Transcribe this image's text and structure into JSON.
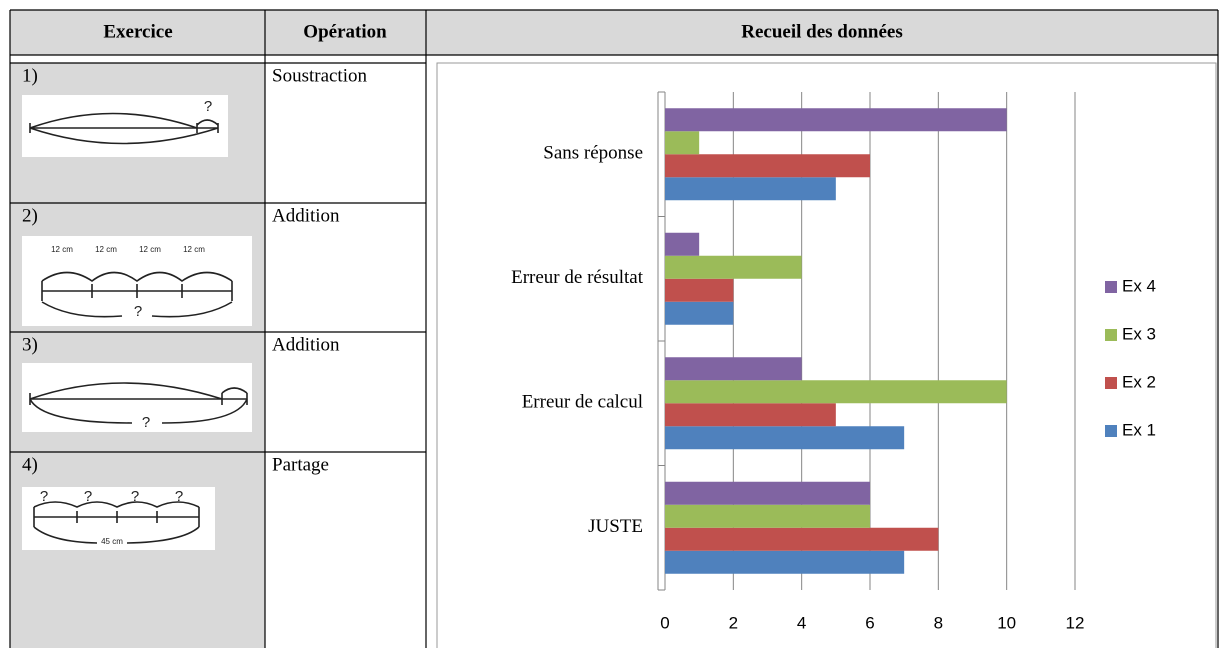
{
  "table": {
    "headers": [
      "Exercice",
      "Opération",
      "Recueil des données"
    ],
    "rows": [
      {
        "exercise": "1)",
        "operation": "Soustraction",
        "sketch_labels": [
          "?"
        ]
      },
      {
        "exercise": "2)",
        "operation": "Addition",
        "sketch_labels": [
          "12 cm",
          "12 cm",
          "12 cm",
          "12 cm",
          "?"
        ]
      },
      {
        "exercise": "3)",
        "operation": "Addition",
        "sketch_labels": [
          "?"
        ]
      },
      {
        "exercise": "4)",
        "operation": "Partage",
        "sketch_labels": [
          "?",
          "?",
          "?",
          "?",
          "45 cm"
        ]
      }
    ]
  },
  "chart_data": {
    "type": "barh",
    "categories": [
      "JUSTE",
      "Erreur de calcul",
      "Erreur de résultat",
      "Sans réponse"
    ],
    "series": [
      {
        "name": "Ex 1",
        "color": "#4f81bd",
        "values": [
          7,
          7,
          2,
          5
        ]
      },
      {
        "name": "Ex 2",
        "color": "#c0504d",
        "values": [
          8,
          5,
          2,
          6
        ]
      },
      {
        "name": "Ex 3",
        "color": "#9bbb59",
        "values": [
          6,
          10,
          4,
          1
        ]
      },
      {
        "name": "Ex 4",
        "color": "#8064a2",
        "values": [
          6,
          4,
          1,
          10
        ]
      }
    ],
    "xlim": [
      0,
      12
    ],
    "xticks": [
      0,
      2,
      4,
      6,
      8,
      10,
      12
    ],
    "grid": true,
    "legend": "right"
  }
}
